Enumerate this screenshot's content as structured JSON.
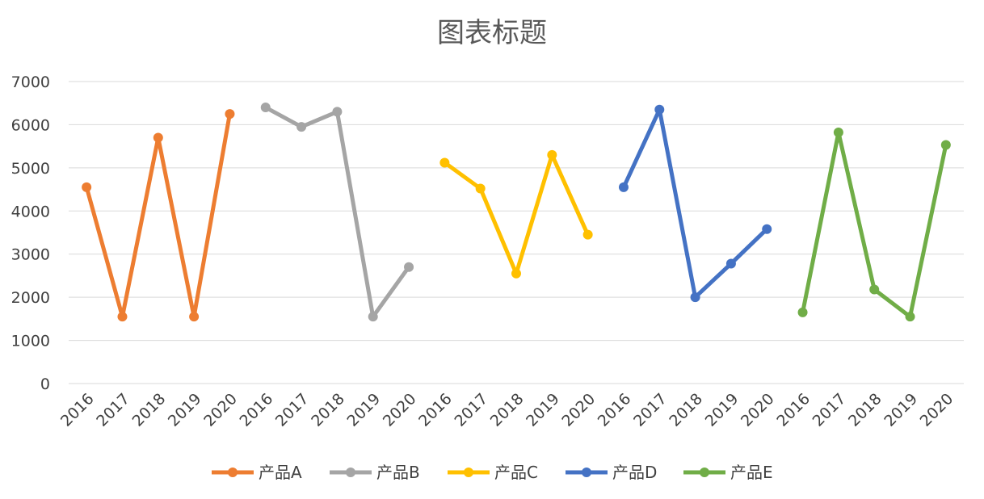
{
  "chart_data": {
    "type": "line",
    "title": "图表标题",
    "xlabel": "",
    "ylabel": "",
    "ylim": [
      0,
      7000
    ],
    "y_ticks": [
      "0",
      "1000",
      "2000",
      "3000",
      "4000",
      "5000",
      "6000",
      "7000"
    ],
    "grid": true,
    "legend_position": "bottom",
    "categories": [
      "2016",
      "2017",
      "2018",
      "2019",
      "2020"
    ],
    "series": [
      {
        "name": "产品A",
        "color": "#ED7D31",
        "values": [
          4550,
          1550,
          5700,
          1550,
          6250
        ]
      },
      {
        "name": "产品B",
        "color": "#A5A5A5",
        "values": [
          6400,
          5950,
          6300,
          1550,
          2700
        ]
      },
      {
        "name": "产品C",
        "color": "#FFC000",
        "values": [
          5120,
          4520,
          2550,
          5300,
          3450
        ]
      },
      {
        "name": "产品D",
        "color": "#4472C4",
        "values": [
          4550,
          6350,
          2000,
          2780,
          3580
        ]
      },
      {
        "name": "产品E",
        "color": "#70AD47",
        "values": [
          1650,
          5820,
          2180,
          1550,
          5530
        ]
      }
    ]
  }
}
